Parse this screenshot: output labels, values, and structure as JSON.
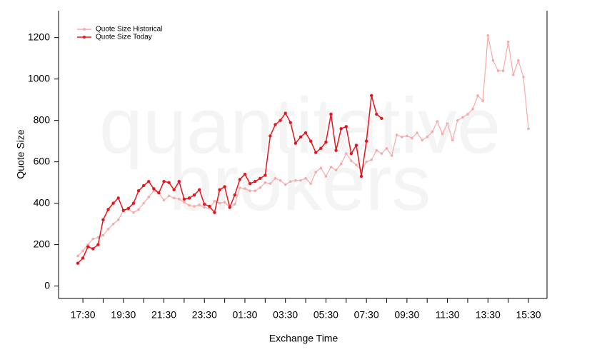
{
  "chart_data": {
    "type": "line",
    "watermark": [
      "quantitative",
      "brokers"
    ],
    "x_label": "Exchange Time",
    "y_label": "Quote Size",
    "categories": [
      null,
      "17:30",
      null,
      null,
      null,
      null,
      null,
      null,
      null,
      "19:30",
      null,
      null,
      null,
      null,
      null,
      null,
      null,
      "21:30",
      null,
      null,
      null,
      null,
      null,
      null,
      null,
      "23:30",
      null,
      null,
      null,
      null,
      null,
      null,
      null,
      "01:30",
      null,
      null,
      null,
      null,
      null,
      null,
      null,
      "03:30",
      null,
      null,
      null,
      null,
      null,
      null,
      null,
      "05:30",
      null,
      null,
      null,
      null,
      null,
      null,
      null,
      "07:30",
      null,
      null,
      null,
      null,
      null,
      null,
      null,
      "09:30",
      null,
      null,
      null,
      null,
      null,
      null,
      null,
      "11:30",
      null,
      null,
      null,
      null,
      null,
      null,
      null,
      "13:30",
      null,
      null,
      null,
      null,
      null,
      null,
      null,
      "15:30"
    ],
    "series": [
      {
        "name": "Quote Size Historical",
        "color": "#f7aaaa",
        "values": [
          145,
          170,
          200,
          228,
          235,
          245,
          275,
          300,
          320,
          365,
          370,
          355,
          370,
          400,
          430,
          460,
          450,
          415,
          435,
          425,
          420,
          405,
          390,
          385,
          392,
          380,
          375,
          410,
          400,
          405,
          380,
          395,
          475,
          470,
          460,
          460,
          475,
          500,
          495,
          520,
          510,
          490,
          505,
          510,
          510,
          520,
          495,
          550,
          570,
          530,
          575,
          560,
          590,
          640,
          605,
          585,
          560,
          600,
          610,
          655,
          640,
          665,
          630,
          730,
          720,
          725,
          715,
          740,
          705,
          720,
          745,
          795,
          735,
          785,
          705,
          800,
          815,
          830,
          855,
          920,
          895,
          1210,
          1090,
          1040,
          1040,
          1180,
          1020,
          1090,
          1010,
          760
        ]
      },
      {
        "name": "Quote Size Today",
        "color": "#e8141c",
        "values": [
          110,
          135,
          190,
          180,
          200,
          320,
          370,
          400,
          425,
          365,
          375,
          400,
          460,
          485,
          505,
          470,
          450,
          505,
          500,
          465,
          505,
          420,
          425,
          440,
          465,
          395,
          385,
          355,
          465,
          480,
          380,
          440,
          515,
          540,
          495,
          505,
          520,
          535,
          725,
          780,
          800,
          835,
          790,
          690,
          720,
          740,
          700,
          645,
          665,
          695,
          830,
          655,
          760,
          770,
          640,
          680,
          530,
          700,
          920,
          830,
          810,
          null,
          null,
          null,
          null,
          null,
          null,
          null,
          null,
          null,
          null,
          null,
          null,
          null,
          null,
          null,
          null,
          null,
          null,
          null,
          null,
          null,
          null,
          null,
          null,
          null,
          null,
          null,
          null,
          null
        ]
      }
    ],
    "ylim": [
      -60,
      1330
    ],
    "yticks": [
      0,
      200,
      400,
      600,
      800,
      1000,
      1200
    ],
    "legend": "top-left"
  }
}
